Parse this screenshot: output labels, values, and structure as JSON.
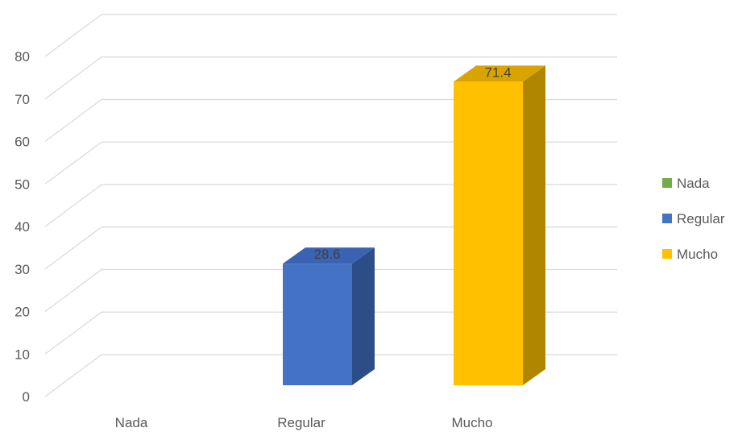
{
  "chart_data": {
    "type": "bar",
    "style": "3d-column",
    "categories": [
      "Nada",
      "Regular",
      "Mucho"
    ],
    "values": [
      0,
      28.6,
      71.4
    ],
    "data_labels": [
      "",
      "28.6",
      "71.4"
    ],
    "colors": [
      "#70ad47",
      "#4472c4",
      "#ffc000"
    ],
    "side_colors": [
      "#4e7a31",
      "#2c4d86",
      "#b08500"
    ],
    "top_colors": [
      "#5e9a3a",
      "#3a64b3",
      "#d9a400"
    ],
    "ylim": [
      0,
      80
    ],
    "yticks": [
      0,
      10,
      20,
      30,
      40,
      50,
      60,
      70,
      80
    ],
    "ytick_labels": [
      "0",
      "10",
      "20",
      "30",
      "40",
      "50",
      "60",
      "70",
      "80"
    ],
    "grid": true,
    "legend": {
      "placement": "right",
      "entries": [
        "Nada",
        "Regular",
        "Mucho"
      ]
    },
    "title": "",
    "xlabel": "",
    "ylabel": ""
  }
}
